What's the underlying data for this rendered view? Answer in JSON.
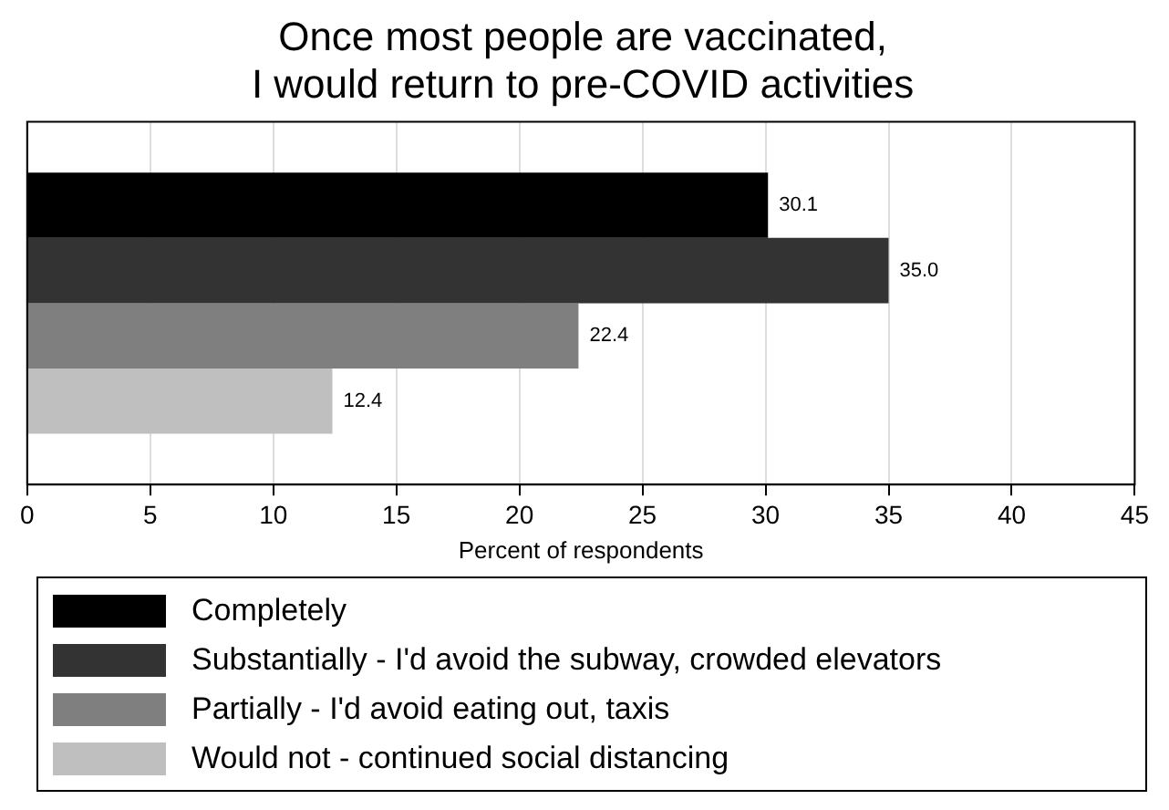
{
  "chart_data": {
    "type": "bar",
    "orientation": "horizontal",
    "title": "Once most people are vaccinated,\nI would return to pre-COVID activities",
    "xlabel": "Percent of respondents",
    "categories": [
      null
    ],
    "series": [
      {
        "name": "Completely",
        "color": "#000000",
        "values": [
          30.1
        ]
      },
      {
        "name": "Substantially - I'd avoid the subway, crowded elevators",
        "color": "#333333",
        "values": [
          35.0
        ]
      },
      {
        "name": "Partially - I'd avoid eating out, taxis",
        "color": "#7f7f7f",
        "values": [
          22.4
        ]
      },
      {
        "name": "Would not - continued social distancing",
        "color": "#bfbfbf",
        "values": [
          12.4
        ]
      }
    ],
    "value_labels": [
      "30.1",
      "35.0",
      "22.4",
      "12.4"
    ],
    "xlim": [
      0,
      45
    ],
    "xticks": [
      0,
      5,
      10,
      15,
      20,
      25,
      30,
      35,
      40,
      45
    ],
    "grid": "x",
    "legend": "bottom"
  }
}
